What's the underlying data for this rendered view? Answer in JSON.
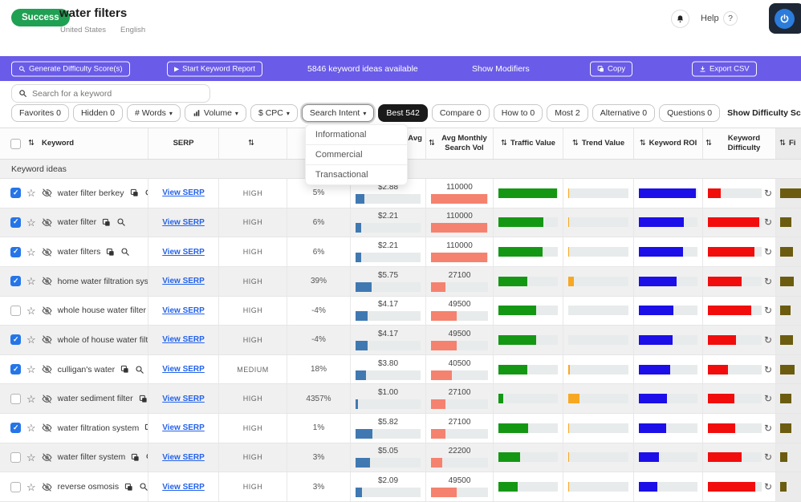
{
  "header": {
    "status": "Success",
    "title": "water filters",
    "country": "United States",
    "language": "English",
    "help": "Help",
    "help_mark": "?"
  },
  "action_bar": {
    "generate": "Generate Difficulty Score(s)",
    "start_report": "Start Keyword Report",
    "ideas": "5846 keyword ideas available",
    "show_modifiers": "Show Modifiers",
    "copy": "Copy",
    "export": "Export CSV"
  },
  "search": {
    "placeholder": "Search for a keyword"
  },
  "filters": [
    {
      "label": "Favorites 0",
      "key": "favorites"
    },
    {
      "label": "Hidden 0",
      "key": "hidden"
    },
    {
      "label": "# Words",
      "key": "words",
      "caret": true
    },
    {
      "label": "Volume",
      "key": "volume",
      "caret": true,
      "icon": "bar-chart"
    },
    {
      "label": "$ CPC",
      "key": "cpc",
      "caret": true
    },
    {
      "label": "Search Intent",
      "key": "search-intent",
      "caret": true,
      "active": true
    },
    {
      "label": "Best 542",
      "key": "best",
      "dark": true
    },
    {
      "label": "Compare 0",
      "key": "compare"
    },
    {
      "label": "How to 0",
      "key": "how-to"
    },
    {
      "label": "Most 2",
      "key": "most"
    },
    {
      "label": "Alternative 0",
      "key": "alternative"
    },
    {
      "label": "Questions 0",
      "key": "questions"
    }
  ],
  "difficulty_toggle_label": "Show Difficulty Scores",
  "intent_dropdown": [
    "Informational",
    "Commercial",
    "Transactional"
  ],
  "table": {
    "group_label": "Keyword ideas",
    "serp_link": "View SERP",
    "columns": [
      {
        "label": "Keyword",
        "key": "keyword",
        "sort": true
      },
      {
        "label": "SERP",
        "key": "serp",
        "sort": false
      },
      {
        "label": "",
        "key": "competition",
        "sort": true
      },
      {
        "label": "",
        "key": "trend-percent",
        "sort": false
      },
      {
        "label": "Google Ads Avg CPC",
        "key": "google-ads-avg-cpc",
        "sort": true
      },
      {
        "label": "Avg Monthly Search Vol",
        "key": "avg-monthly-search-vol",
        "sort": true
      },
      {
        "label": "Traffic Value",
        "key": "traffic-value",
        "sort": true
      },
      {
        "label": "Trend Value",
        "key": "trend-value",
        "sort": true
      },
      {
        "label": "Keyword ROI",
        "key": "keyword-roi",
        "sort": true
      },
      {
        "label": "Keyword Difficulty",
        "key": "keyword-difficulty",
        "sort": true
      },
      {
        "label": "Fi",
        "key": "fi",
        "sort": true
      }
    ],
    "rows": [
      {
        "keyword": "water filter berkey",
        "checked": true,
        "competition": "HIGH",
        "trend_pct": "5%",
        "cpc": "$2.88",
        "volume": "110000",
        "bars": {
          "cpc": 13,
          "volume": 98,
          "traffic": 98,
          "trend": 1,
          "roi": 97,
          "difficulty": 24,
          "extra": 100
        }
      },
      {
        "keyword": "water filter",
        "checked": true,
        "competition": "HIGH",
        "trend_pct": "6%",
        "cpc": "$2.21",
        "volume": "110000",
        "bars": {
          "cpc": 9,
          "volume": 98,
          "traffic": 76,
          "trend": 1,
          "roi": 77,
          "difficulty": 95,
          "extra": 55
        }
      },
      {
        "keyword": "water filters",
        "checked": true,
        "competition": "HIGH",
        "trend_pct": "6%",
        "cpc": "$2.21",
        "volume": "110000",
        "bars": {
          "cpc": 9,
          "volume": 98,
          "traffic": 74,
          "trend": 1,
          "roi": 75,
          "difficulty": 87,
          "extra": 60
        }
      },
      {
        "keyword": "home water filtration system",
        "checked": true,
        "competition": "HIGH",
        "trend_pct": "39%",
        "cpc": "$5.75",
        "volume": "27100",
        "bars": {
          "cpc": 25,
          "volume": 25,
          "traffic": 48,
          "trend": 9,
          "roi": 64,
          "difficulty": 62,
          "extra": 65
        }
      },
      {
        "keyword": "whole house water filter",
        "checked": false,
        "competition": "HIGH",
        "trend_pct": "-4%",
        "cpc": "$4.17",
        "volume": "49500",
        "bars": {
          "cpc": 18,
          "volume": 45,
          "traffic": 64,
          "trend": 0,
          "roi": 59,
          "difficulty": 81,
          "extra": 50
        }
      },
      {
        "keyword": "whole of house water filter",
        "checked": true,
        "competition": "HIGH",
        "trend_pct": "-4%",
        "cpc": "$4.17",
        "volume": "49500",
        "bars": {
          "cpc": 18,
          "volume": 45,
          "traffic": 63,
          "trend": 0,
          "roi": 57,
          "difficulty": 53,
          "extra": 60
        }
      },
      {
        "keyword": "culligan's water",
        "checked": true,
        "competition": "MEDIUM",
        "trend_pct": "18%",
        "cpc": "$3.80",
        "volume": "40500",
        "bars": {
          "cpc": 16,
          "volume": 37,
          "traffic": 49,
          "trend": 2,
          "roi": 53,
          "difficulty": 37,
          "extra": 70
        }
      },
      {
        "keyword": "water sediment filter",
        "checked": false,
        "competition": "HIGH",
        "trend_pct": "4357%",
        "cpc": "$1.00",
        "volume": "27100",
        "bars": {
          "cpc": 4,
          "volume": 25,
          "traffic": 8,
          "trend": 19,
          "roi": 48,
          "difficulty": 49,
          "extra": 55
        }
      },
      {
        "keyword": "water filtration system",
        "checked": true,
        "competition": "HIGH",
        "trend_pct": "1%",
        "cpc": "$5.82",
        "volume": "27100",
        "bars": {
          "cpc": 26,
          "volume": 25,
          "traffic": 50,
          "trend": 1,
          "roi": 47,
          "difficulty": 51,
          "extra": 55
        }
      },
      {
        "keyword": "water filter system",
        "checked": false,
        "competition": "HIGH",
        "trend_pct": "3%",
        "cpc": "$5.05",
        "volume": "22200",
        "bars": {
          "cpc": 22,
          "volume": 20,
          "traffic": 36,
          "trend": 1,
          "roi": 34,
          "difficulty": 63,
          "extra": 35
        }
      },
      {
        "keyword": "reverse osmosis",
        "checked": false,
        "competition": "HIGH",
        "trend_pct": "3%",
        "cpc": "$2.09",
        "volume": "49500",
        "bars": {
          "cpc": 10,
          "volume": 45,
          "traffic": 32,
          "trend": 1,
          "roi": 31,
          "difficulty": 88,
          "extra": 30
        }
      }
    ]
  },
  "colors": {
    "accent_purple": "#6a5be8",
    "success_green": "#1fa052",
    "cpc_bar": "#4079b2",
    "volume_bar": "#f4826f",
    "traffic_bar": "#149814",
    "trend_bar": "#f7a823",
    "roi_bar": "#1c0fe8",
    "difficulty_bar": "#f20d0d",
    "extra_bar": "#6b5c10",
    "link_blue": "#2563eb",
    "checkbox_blue": "#2575e8"
  }
}
